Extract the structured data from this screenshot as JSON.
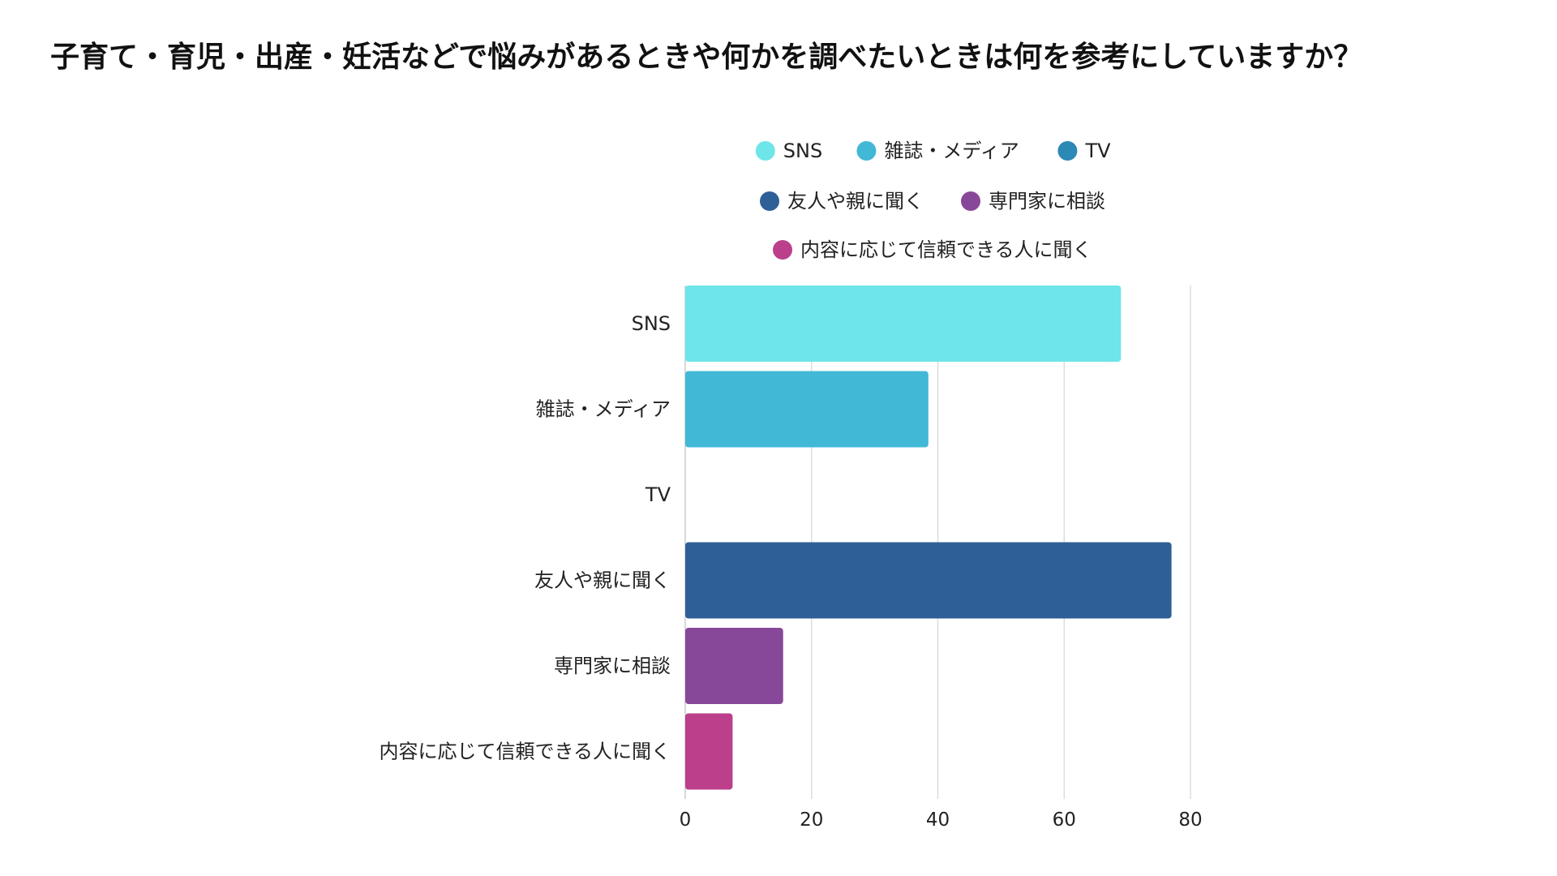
{
  "chart_data": {
    "type": "bar",
    "orientation": "horizontal",
    "title": "子育て・育児・出産・妊活などで悩みがあるときや何かを調べたいときは何を参考にしていますか？",
    "categories": [
      "SNS",
      "雑誌・メディア",
      "TV",
      "友人や親に聞く",
      "専門家に相談",
      "内容に応じて信頼できる人に聞く"
    ],
    "values": [
      69,
      38.5,
      0,
      77,
      15.5,
      7.5
    ],
    "colors": [
      "#6ee5e9",
      "#42b8d7",
      "#2c88b5",
      "#2f5f97",
      "#884899",
      "#bb3f8a"
    ],
    "legend": [
      "SNS",
      "雑誌・メディア",
      "TV",
      "友人や親に聞く",
      "専門家に相談",
      "内容に応じて信頼できる人に聞く"
    ],
    "legend_position": "top",
    "xlim": [
      0,
      80
    ],
    "xticks": [
      0,
      20,
      40,
      60,
      80
    ],
    "grid": true,
    "xlabel": "",
    "ylabel": ""
  }
}
